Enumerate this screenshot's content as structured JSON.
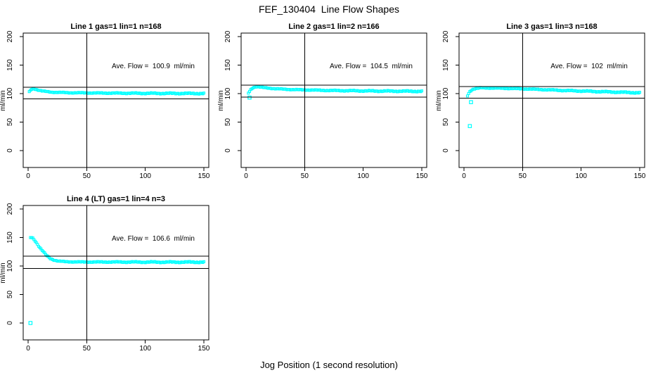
{
  "figure": {
    "title": "FEF_130404  Line Flow Shapes",
    "xlabel": "Jog Position (1 second resolution)",
    "background": "#ffffff"
  },
  "style": {
    "marker_color": "#00ffff",
    "axis_color": "#000000",
    "marker_shape": "open-square"
  },
  "chart_data": [
    {
      "type": "scatter",
      "title": "Line 1 gas=1 lin=1 n=168",
      "ylabel": "ml/min",
      "x_ticks": [
        0,
        50,
        100,
        150
      ],
      "y_ticks": [
        0,
        50,
        100,
        150,
        200
      ],
      "ave_flow": 100.9,
      "ave_flow_label": "Ave. Flow =  100.9  ml/min",
      "vline_x": 50,
      "hlines": [
        110.99,
        90.81
      ],
      "x_start": 1,
      "x_end": 150,
      "anchors": [
        [
          1,
          103
        ],
        [
          2,
          106
        ],
        [
          3,
          107.5
        ],
        [
          5,
          108.5
        ],
        [
          8,
          106.5
        ],
        [
          12,
          104.5
        ],
        [
          20,
          102.5
        ],
        [
          35,
          101.5
        ],
        [
          60,
          101
        ],
        [
          100,
          100.5
        ],
        [
          150,
          100.2
        ]
      ],
      "outliers": []
    },
    {
      "type": "scatter",
      "title": "Line 2 gas=1 lin=2 n=166",
      "ylabel": "ml/min",
      "x_ticks": [
        0,
        50,
        100,
        150
      ],
      "y_ticks": [
        0,
        50,
        100,
        150,
        200
      ],
      "ave_flow": 104.5,
      "ave_flow_label": "Ave. Flow =  104.5  ml/min",
      "vline_x": 50,
      "hlines": [
        114.95,
        94.05
      ],
      "x_start": 2,
      "x_end": 150,
      "anchors": [
        [
          2,
          101
        ],
        [
          4,
          107
        ],
        [
          6,
          110.5
        ],
        [
          9,
          112
        ],
        [
          15,
          110.5
        ],
        [
          25,
          108.5
        ],
        [
          40,
          107
        ],
        [
          70,
          105.5
        ],
        [
          110,
          104.5
        ],
        [
          150,
          104
        ]
      ],
      "outliers": [
        [
          3,
          93
        ]
      ]
    },
    {
      "type": "scatter",
      "title": "Line 3 gas=1 lin=3 n=168",
      "ylabel": "ml/min",
      "x_ticks": [
        0,
        50,
        100,
        150
      ],
      "y_ticks": [
        0,
        50,
        100,
        150,
        200
      ],
      "ave_flow": 102,
      "ave_flow_label": "Ave. Flow =  102  ml/min",
      "vline_x": 50,
      "hlines": [
        112.2,
        91.8
      ],
      "x_start": 3,
      "x_end": 150,
      "anchors": [
        [
          3,
          96
        ],
        [
          5,
          104
        ],
        [
          8,
          108
        ],
        [
          14,
          110
        ],
        [
          30,
          109.5
        ],
        [
          55,
          108
        ],
        [
          85,
          105.5
        ],
        [
          115,
          103.5
        ],
        [
          140,
          102
        ],
        [
          150,
          101.5
        ]
      ],
      "outliers": [
        [
          6,
          85
        ],
        [
          5,
          43
        ]
      ]
    },
    {
      "type": "scatter",
      "title": "Line 4 (LT) gas=1 lin=4 n=3",
      "ylabel": "ml/min",
      "x_ticks": [
        0,
        50,
        100,
        150
      ],
      "y_ticks": [
        0,
        50,
        100,
        150,
        200
      ],
      "ave_flow": 106.6,
      "ave_flow_label": "Ave. Flow =  106.6  ml/min",
      "vline_x": 50,
      "hlines": [
        117.26,
        95.94
      ],
      "x_start": 2,
      "x_end": 150,
      "anchors": [
        [
          2,
          150
        ],
        [
          3,
          150
        ],
        [
          4,
          149
        ],
        [
          6,
          144
        ],
        [
          8,
          138
        ],
        [
          10,
          132
        ],
        [
          13,
          125
        ],
        [
          16,
          118
        ],
        [
          19,
          113
        ],
        [
          22,
          110.5
        ],
        [
          26,
          108.5
        ],
        [
          32,
          107.5
        ],
        [
          45,
          107
        ],
        [
          70,
          107
        ],
        [
          110,
          106.8
        ],
        [
          150,
          106.8
        ]
      ],
      "outliers": [
        [
          2,
          0
        ]
      ]
    }
  ]
}
